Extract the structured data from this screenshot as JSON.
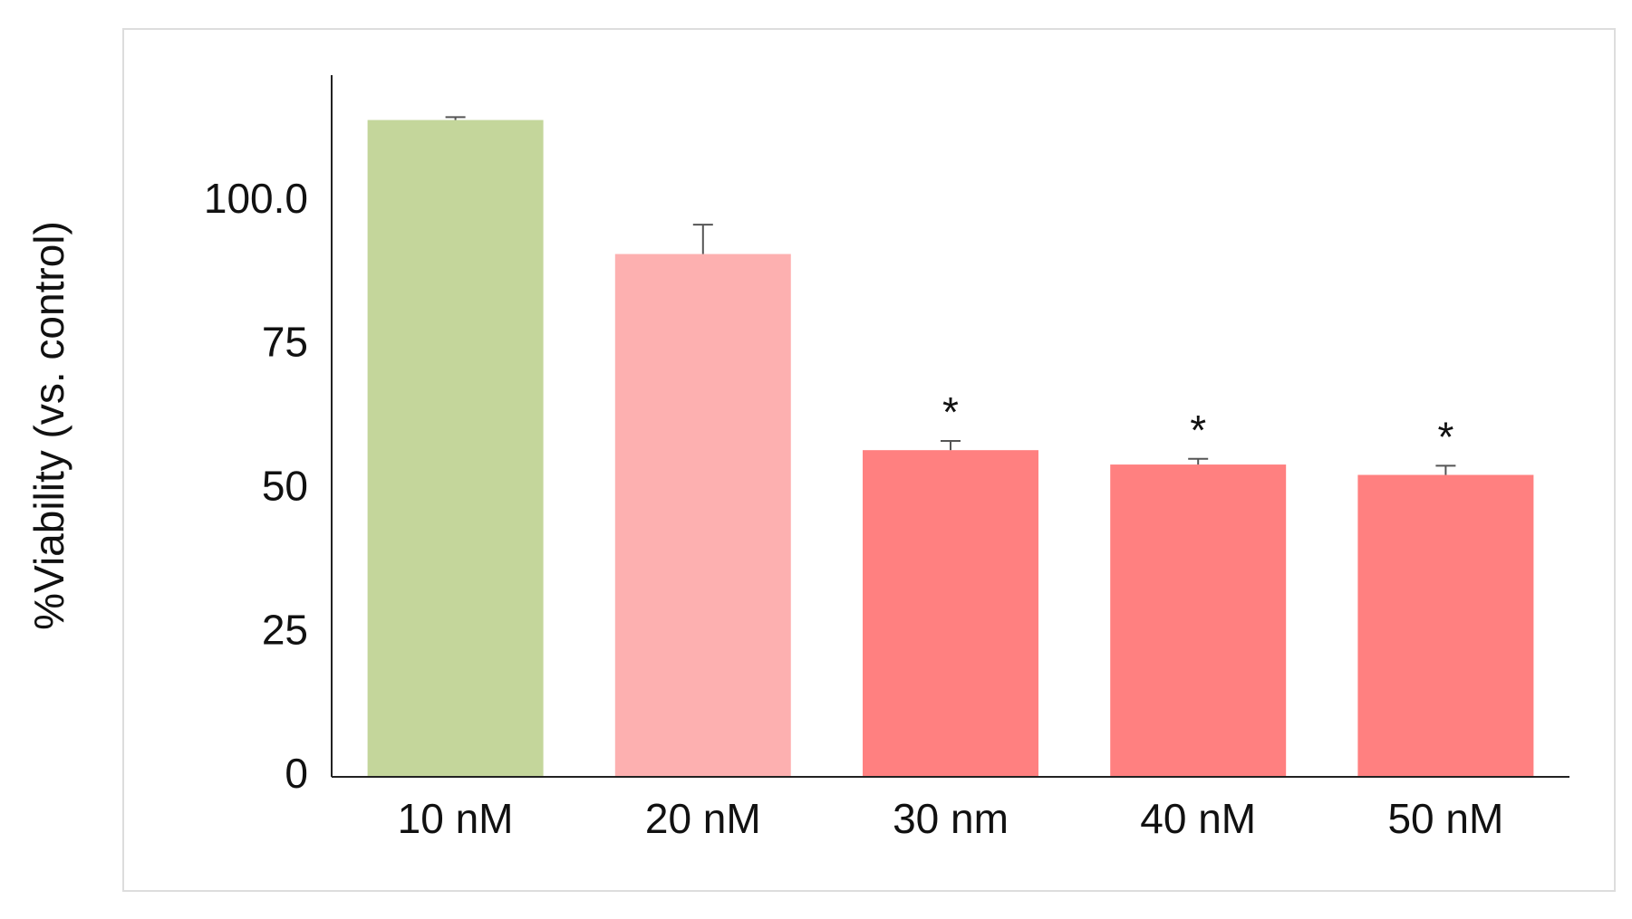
{
  "chart_data": {
    "type": "bar",
    "y_label": "%Viability (vs. control)",
    "categories": [
      "10 nM",
      "20 nM",
      "30 nm",
      "40 nM",
      "50 nM"
    ],
    "values": [
      114.2,
      90.9,
      56.8,
      54.3,
      52.5
    ],
    "errors": [
      0.5,
      5.1,
      1.6,
      1.0,
      1.6
    ],
    "colors": [
      "#c4d69b",
      "#fdb0b0",
      "#ff8080",
      "#ff8080",
      "#ff8080"
    ],
    "annotations": [
      null,
      null,
      "*",
      "*",
      "*"
    ],
    "ylim": [
      0,
      122
    ],
    "yticks": [
      0,
      25,
      50,
      75,
      {
        "value": 100,
        "label": "100.0"
      }
    ],
    "grid": false
  }
}
